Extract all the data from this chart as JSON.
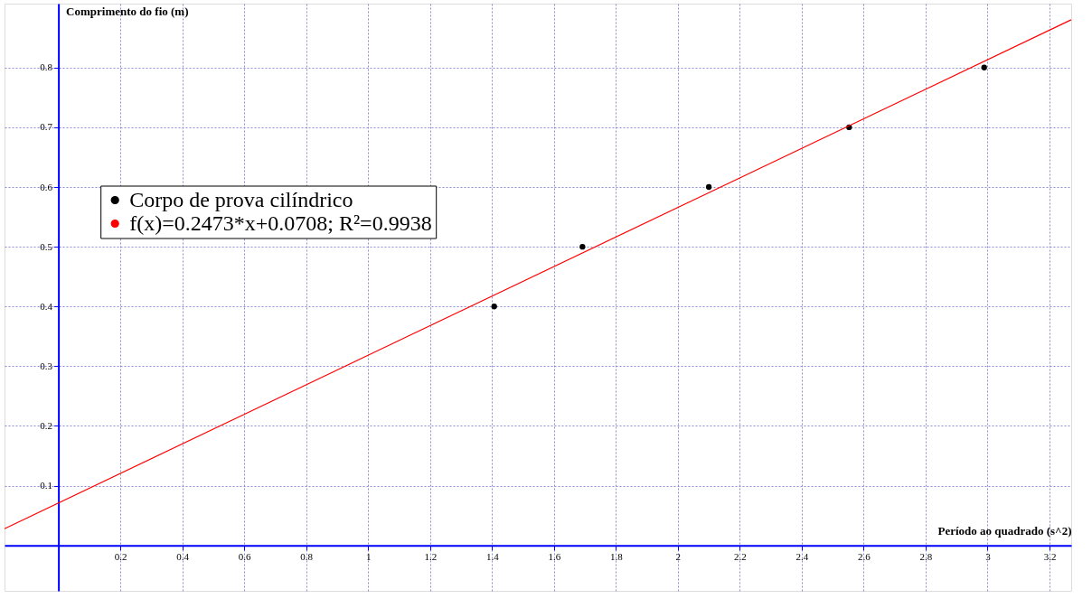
{
  "chart_data": {
    "type": "scatter",
    "xlabel": "Período ao quadrado (s^2)",
    "ylabel": "Comprimento do fio (m)",
    "xlim": [
      -0.174,
      3.27
    ],
    "ylim": [
      -0.076,
      0.907
    ],
    "xticks": [
      0.2,
      0.4,
      0.6,
      0.8,
      1,
      1.2,
      1.4,
      1.6,
      1.8,
      2,
      2.2,
      2.4,
      2.6,
      2.8,
      3,
      3.2
    ],
    "yticks": [
      0.1,
      0.2,
      0.3,
      0.4,
      0.5,
      0.6,
      0.7,
      0.8
    ],
    "grid": true,
    "legend": "top left",
    "series": [
      {
        "name": "Corpo de prova cilíndrico",
        "marker": "circle",
        "color": "#000000",
        "x": [
          1.407,
          1.692,
          2.1,
          2.553,
          2.989
        ],
        "values": [
          0.4,
          0.5,
          0.6,
          0.7,
          0.8
        ]
      },
      {
        "name": "f(x)=0.2473*x+0.0708; R²=0.9938",
        "type": "line",
        "color": "#ff0000",
        "line_style": "solid",
        "x": [
          -0.174,
          3.27
        ],
        "values": [
          0.028,
          0.88
        ]
      }
    ]
  }
}
